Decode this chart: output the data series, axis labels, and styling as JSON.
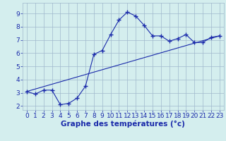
{
  "xlabel": "Graphe des températures (°c)",
  "xlim": [
    -0.5,
    23.5
  ],
  "ylim": [
    1.7,
    9.8
  ],
  "yticks": [
    2,
    3,
    4,
    5,
    6,
    7,
    8,
    9
  ],
  "xticks": [
    0,
    1,
    2,
    3,
    4,
    5,
    6,
    7,
    8,
    9,
    10,
    11,
    12,
    13,
    14,
    15,
    16,
    17,
    18,
    19,
    20,
    21,
    22,
    23
  ],
  "bg_color": "#d4eeee",
  "grid_color": "#a0b8cc",
  "line_color": "#1a2aaa",
  "line1_x": [
    0,
    1,
    2,
    3,
    4,
    5,
    6,
    7,
    8,
    9,
    10,
    11,
    12,
    13,
    14,
    15,
    16,
    17,
    18,
    19,
    20,
    21,
    22,
    23
  ],
  "line1_y": [
    3.1,
    2.9,
    3.2,
    3.2,
    2.1,
    2.2,
    2.6,
    3.5,
    5.9,
    6.2,
    7.4,
    8.5,
    9.1,
    8.8,
    8.1,
    7.3,
    7.3,
    6.9,
    7.1,
    7.4,
    6.8,
    6.8,
    7.2,
    7.3
  ],
  "line2_x": [
    0,
    23
  ],
  "line2_y": [
    3.1,
    7.3
  ],
  "xlabel_fontsize": 7.5,
  "tick_fontsize": 6.5
}
